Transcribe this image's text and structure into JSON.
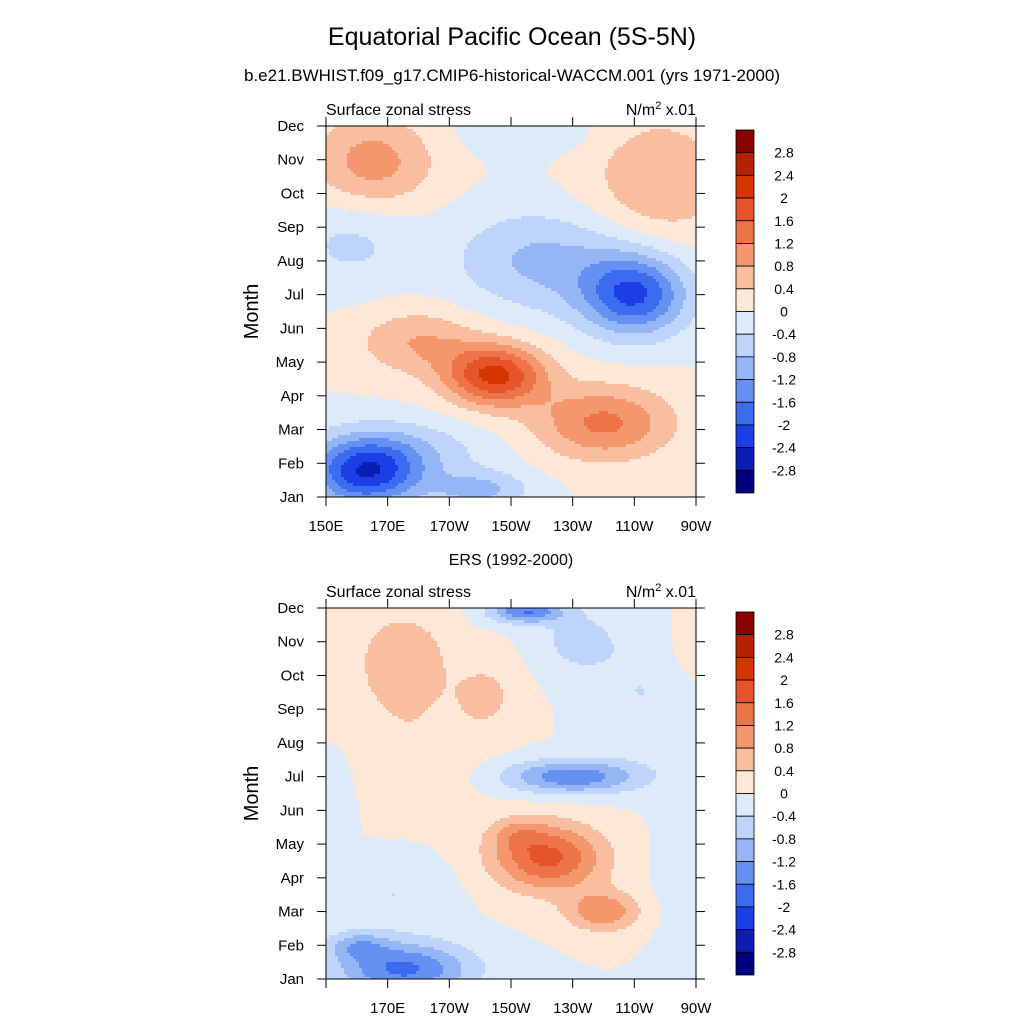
{
  "figure": {
    "title": "Equatorial Pacific Ocean (5S-5N)",
    "subtitle": "b.e21.BWHIST.f09_g17.CMIP6-historical-WACCM.001 (yrs 1971-2000)"
  },
  "chart_data": [
    {
      "type": "heatmap",
      "panel_label": "",
      "left_label": "Surface zonal stress",
      "units_base": "N/m",
      "units_sup": "2",
      "units_scale": " x.01",
      "ylabel": "Month",
      "x_tick_labels": [
        "150E",
        "170E",
        "170W",
        "150W",
        "130W",
        "110W",
        "90W"
      ],
      "x_ticks_deg": [
        150,
        170,
        190,
        210,
        230,
        250,
        270
      ],
      "y_tick_labels": [
        "Jan",
        "Feb",
        "Mar",
        "Apr",
        "May",
        "Jun",
        "Jul",
        "Aug",
        "Sep",
        "Oct",
        "Nov",
        "Dec"
      ],
      "xlim_deg": [
        150,
        270
      ],
      "ylim_month": [
        1,
        12
      ],
      "grid": false,
      "colorbar": {
        "placement": "right"
      },
      "features": [
        {
          "lon": 163,
          "month": 1.7,
          "sx": 18,
          "sy": 1.0,
          "amp": -2.2
        },
        {
          "lon": 200,
          "month": 1.2,
          "sx": 16,
          "sy": 0.6,
          "amp": -0.9
        },
        {
          "lon": 175,
          "month": 2.4,
          "sx": 28,
          "sy": 0.9,
          "amp": -0.6
        },
        {
          "lon": 205,
          "month": 4.6,
          "sx": 16,
          "sy": 0.9,
          "amp": 2.1
        },
        {
          "lon": 240,
          "month": 3.2,
          "sx": 22,
          "sy": 1.1,
          "amp": 1.3
        },
        {
          "lon": 180,
          "month": 5.6,
          "sx": 20,
          "sy": 1.0,
          "amp": 0.8
        },
        {
          "lon": 250,
          "month": 7.0,
          "sx": 17,
          "sy": 1.2,
          "amp": -2.0
        },
        {
          "lon": 220,
          "month": 8.0,
          "sx": 28,
          "sy": 1.5,
          "amp": -0.9
        },
        {
          "lon": 158,
          "month": 8.6,
          "sx": 20,
          "sy": 1.4,
          "amp": -0.5
        },
        {
          "lon": 165,
          "month": 10.9,
          "sx": 20,
          "sy": 1.4,
          "amp": 1.0
        },
        {
          "lon": 258,
          "month": 10.4,
          "sx": 22,
          "sy": 1.8,
          "amp": 0.8
        },
        {
          "lon": 215,
          "month": 11.8,
          "sx": 20,
          "sy": 0.6,
          "amp": -0.4
        }
      ]
    },
    {
      "type": "heatmap",
      "panel_label": "ERS (1992-2000)",
      "left_label": "Surface zonal stress",
      "units_base": "N/m",
      "units_sup": "2",
      "units_scale": " x.01",
      "ylabel": "Month",
      "x_tick_labels": [
        "",
        "170E",
        "170W",
        "150W",
        "130W",
        "110W",
        "90W"
      ],
      "x_ticks_deg": [
        150,
        170,
        190,
        210,
        230,
        250,
        270
      ],
      "y_tick_labels": [
        "Jan",
        "Feb",
        "Mar",
        "Apr",
        "May",
        "Jun",
        "Jul",
        "Aug",
        "Sep",
        "Oct",
        "Nov",
        "Dec"
      ],
      "xlim_deg": [
        150,
        270
      ],
      "ylim_month": [
        1,
        12
      ],
      "grid": false,
      "colorbar": {
        "placement": "right"
      },
      "features": [
        {
          "lon": 175,
          "month": 1.3,
          "sx": 22,
          "sy": 0.8,
          "amp": -1.7
        },
        {
          "lon": 160,
          "month": 2.0,
          "sx": 10,
          "sy": 0.4,
          "amp": -0.8
        },
        {
          "lon": 172,
          "month": 3.5,
          "sx": 18,
          "sy": 1.0,
          "amp": -0.4
        },
        {
          "lon": 222,
          "month": 4.6,
          "sx": 18,
          "sy": 1.0,
          "amp": 1.7
        },
        {
          "lon": 240,
          "month": 3.0,
          "sx": 12,
          "sy": 0.6,
          "amp": 1.1
        },
        {
          "lon": 212,
          "month": 5.3,
          "sx": 9,
          "sy": 0.5,
          "amp": 0.5
        },
        {
          "lon": 230,
          "month": 7.0,
          "sx": 22,
          "sy": 0.5,
          "amp": -1.5
        },
        {
          "lon": 252,
          "month": 9.5,
          "sx": 14,
          "sy": 1.8,
          "amp": -0.4
        },
        {
          "lon": 232,
          "month": 11.0,
          "sx": 12,
          "sy": 0.9,
          "amp": -0.6
        },
        {
          "lon": 215,
          "month": 11.9,
          "sx": 12,
          "sy": 0.35,
          "amp": -1.6
        },
        {
          "lon": 175,
          "month": 10.4,
          "sx": 16,
          "sy": 1.6,
          "amp": 0.7
        },
        {
          "lon": 202,
          "month": 9.4,
          "sx": 10,
          "sy": 1.0,
          "amp": 0.5
        },
        {
          "lon": 153,
          "month": 6.5,
          "sx": 6,
          "sy": 1.2,
          "amp": -0.3
        },
        {
          "lon": 180,
          "month": 7.6,
          "sx": 22,
          "sy": 1.6,
          "amp": 0.3
        },
        {
          "lon": 268,
          "month": 4.0,
          "sx": 10,
          "sy": 2.5,
          "amp": -0.3
        },
        {
          "lon": 268,
          "month": 11.0,
          "sx": 6,
          "sy": 1.0,
          "amp": 0.3
        }
      ]
    }
  ],
  "colorbar": {
    "levels": [
      2.8,
      2.4,
      2,
      1.6,
      1.2,
      0.8,
      0.4,
      0,
      -0.4,
      -0.8,
      -1.2,
      -1.6,
      -2,
      -2.4,
      -2.8
    ],
    "colors": [
      "#8b0000",
      "#b52200",
      "#d53600",
      "#e6542b",
      "#ec7446",
      "#f4976d",
      "#f8be9f",
      "#fde7d6",
      "#dceaf9",
      "#bed4fa",
      "#94b6f4",
      "#6592f2",
      "#3b6bee",
      "#1b3fe5",
      "#0b1eb3",
      "#000080"
    ]
  }
}
